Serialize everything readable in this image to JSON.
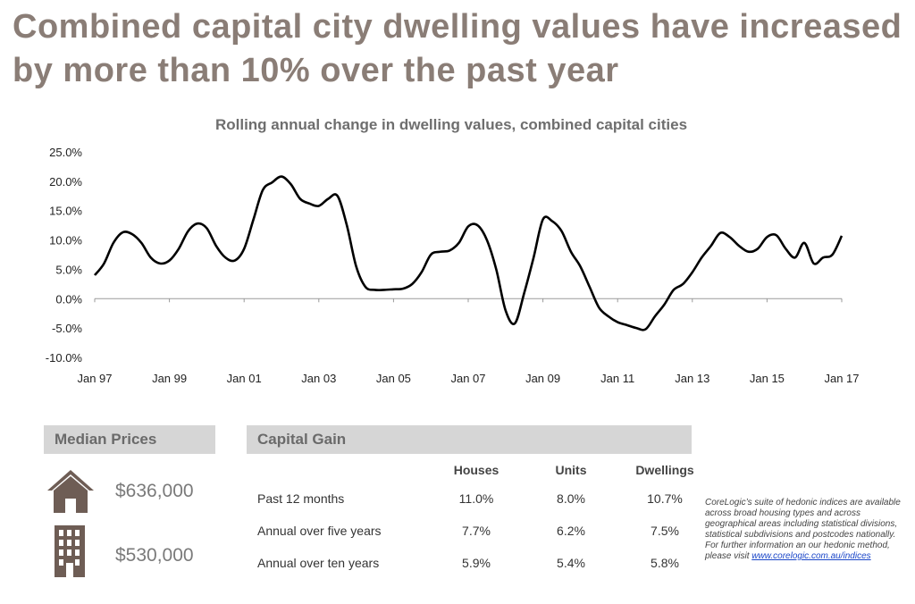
{
  "headline": "Combined capital city dwelling values have increased by more than 10% over the past year",
  "chart_data": {
    "type": "line",
    "title": "Rolling annual change in dwelling values, combined capital cities",
    "xlabel": "",
    "ylabel": "",
    "ylim": [
      -10,
      25
    ],
    "y_ticks": [
      "25.0%",
      "20.0%",
      "15.0%",
      "10.0%",
      "5.0%",
      "0.0%",
      "-5.0%",
      "-10.0%"
    ],
    "x_ticks": [
      "Jan 97",
      "Jan 99",
      "Jan 01",
      "Jan 03",
      "Jan 05",
      "Jan 07",
      "Jan 09",
      "Jan 11",
      "Jan 13",
      "Jan 15",
      "Jan 17"
    ],
    "grid": false,
    "color": "#000000",
    "series": [
      {
        "x": [
          "Jan 97",
          "Apr 97",
          "Jul 97",
          "Oct 97",
          "Jan 98",
          "Apr 98",
          "Jul 98",
          "Oct 98",
          "Jan 99",
          "Apr 99",
          "Jul 99",
          "Oct 99",
          "Jan 00",
          "Apr 00",
          "Jul 00",
          "Oct 00",
          "Jan 01",
          "Apr 01",
          "Jul 01",
          "Oct 01",
          "Jan 02",
          "Apr 02",
          "Jul 02",
          "Oct 02",
          "Jan 03",
          "Apr 03",
          "Jul 03",
          "Oct 03",
          "Jan 04",
          "Apr 04",
          "Jul 04",
          "Oct 04",
          "Jan 05",
          "Apr 05",
          "Jul 05",
          "Oct 05",
          "Jan 06",
          "Apr 06",
          "Jul 06",
          "Oct 06",
          "Jan 07",
          "Apr 07",
          "Jul 07",
          "Oct 07",
          "Jan 08",
          "Apr 08",
          "Jul 08",
          "Oct 08",
          "Jan 09",
          "Apr 09",
          "Jul 09",
          "Oct 09",
          "Jan 10",
          "Apr 10",
          "Jul 10",
          "Oct 10",
          "Jan 11",
          "Apr 11",
          "Jul 11",
          "Oct 11",
          "Jan 12",
          "Apr 12",
          "Jul 12",
          "Oct 12",
          "Jan 13",
          "Apr 13",
          "Jul 13",
          "Oct 13",
          "Jan 14",
          "Apr 14",
          "Jul 14",
          "Oct 14",
          "Jan 15",
          "Apr 15",
          "Jul 15",
          "Oct 15",
          "Jan 16",
          "Apr 16",
          "Jul 16",
          "Oct 16",
          "Jan 17"
        ],
        "values": [
          4.0,
          6.0,
          9.5,
          11.3,
          11.0,
          9.5,
          7.0,
          6.0,
          6.5,
          8.5,
          11.5,
          12.8,
          12.0,
          9.0,
          7.0,
          6.5,
          8.5,
          13.5,
          18.5,
          19.8,
          20.8,
          19.5,
          17.0,
          16.2,
          15.8,
          17.0,
          17.5,
          12.5,
          5.5,
          2.0,
          1.5,
          1.5,
          1.6,
          1.7,
          2.5,
          4.5,
          7.5,
          8.0,
          8.2,
          9.5,
          12.3,
          12.5,
          10.0,
          5.0,
          -2.0,
          -4.2,
          1.0,
          7.0,
          13.5,
          13.2,
          11.5,
          8.0,
          5.5,
          2.0,
          -1.5,
          -3.0,
          -4.0,
          -4.5,
          -5.0,
          -5.2,
          -3.0,
          -1.0,
          1.5,
          2.5,
          4.5,
          7.0,
          9.0,
          11.2,
          10.5,
          9.0,
          8.0,
          8.5,
          10.5,
          10.8,
          8.5,
          7.0,
          9.5,
          6.0,
          7.0,
          7.5,
          10.7
        ]
      }
    ]
  },
  "median_prices": {
    "header": "Median Prices",
    "house_icon": "house-icon",
    "house_price": "$636,000",
    "unit_icon": "apartment-building-icon",
    "unit_price": "$530,000"
  },
  "capital_gain": {
    "header": "Capital Gain",
    "columns": [
      "",
      "Houses",
      "Units",
      "Dwellings"
    ],
    "rows": [
      {
        "label": "Past 12 months",
        "houses": "11.0%",
        "units": "8.0%",
        "dwellings": "10.7%"
      },
      {
        "label": "Annual over five years",
        "houses": "7.7%",
        "units": "6.2%",
        "dwellings": "7.5%"
      },
      {
        "label": "Annual over ten years",
        "houses": "5.9%",
        "units": "5.4%",
        "dwellings": "5.8%"
      }
    ]
  },
  "footnote": {
    "text": "CoreLogic’s suite of hedonic indices are available across broad housing types and across geographical areas including statistical divisions, statistical subdivisions and postcodes nationally.  For further information an our hedonic method, please visit ",
    "link": "www.corelogic.com.au/indices"
  },
  "colors": {
    "headline": "#8a7d76",
    "icon": "#6e5d55",
    "panel_header_bg": "#d6d6d6",
    "link": "#1a46c8"
  }
}
